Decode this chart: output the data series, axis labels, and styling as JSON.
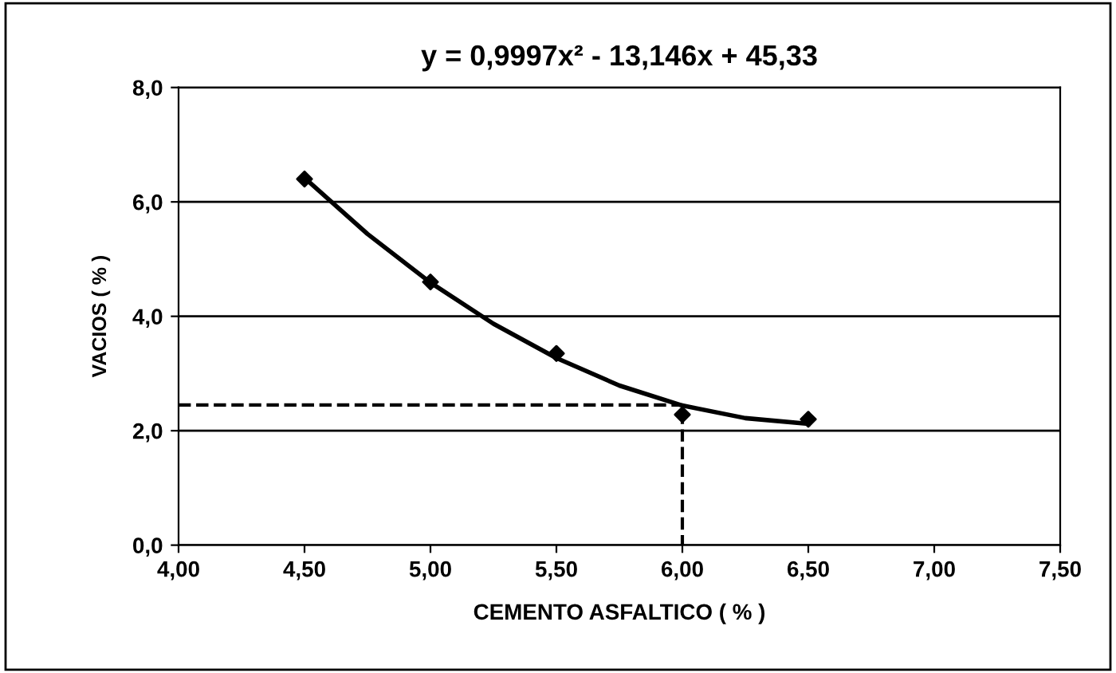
{
  "chart_data": {
    "type": "line",
    "title": "y = 0,9997x² - 13,146x + 45,33",
    "xlabel": "CEMENTO ASFALTICO ( % )",
    "ylabel": "VACIOS ( % )",
    "xlim": [
      4,
      7.5
    ],
    "xticks": [
      {
        "value": 4,
        "label": "4,00"
      },
      {
        "value": 4.5,
        "label": "4,50"
      },
      {
        "value": 5,
        "label": "5,00"
      },
      {
        "value": 5.5,
        "label": "5,50"
      },
      {
        "value": 6,
        "label": "6,00"
      },
      {
        "value": 6.5,
        "label": "6,50"
      },
      {
        "value": 7,
        "label": "7,00"
      },
      {
        "value": 7.5,
        "label": "7,50"
      }
    ],
    "ylim": [
      0,
      8
    ],
    "yticks": [
      {
        "value": 0,
        "label": "0,0"
      },
      {
        "value": 2,
        "label": "2,0"
      },
      {
        "value": 4,
        "label": "4,0"
      },
      {
        "value": 6,
        "label": "6,0"
      },
      {
        "value": 8,
        "label": "8,0"
      }
    ],
    "grid": "y",
    "series": [
      {
        "type": "scatter",
        "color": "#000000",
        "marker": "diamond",
        "x": [
          4.5,
          5.0,
          5.5,
          6.0,
          6.5
        ],
        "values": [
          6.4,
          4.6,
          3.35,
          2.28,
          2.2
        ]
      },
      {
        "color": "#000000",
        "marker": "none",
        "line_style": "solid",
        "x": [
          4.5,
          4.75,
          5.0,
          5.25,
          5.5,
          5.75,
          6.0,
          6.25,
          6.5
        ],
        "values": [
          6.42,
          5.44,
          4.59,
          3.87,
          3.27,
          2.79,
          2.44,
          2.22,
          2.12
        ]
      },
      {
        "color": "#000000",
        "marker": "none",
        "line_style": "dashed",
        "x": [
          4.0,
          6.0,
          6.0
        ],
        "values": [
          2.45,
          2.45,
          0
        ]
      }
    ]
  }
}
